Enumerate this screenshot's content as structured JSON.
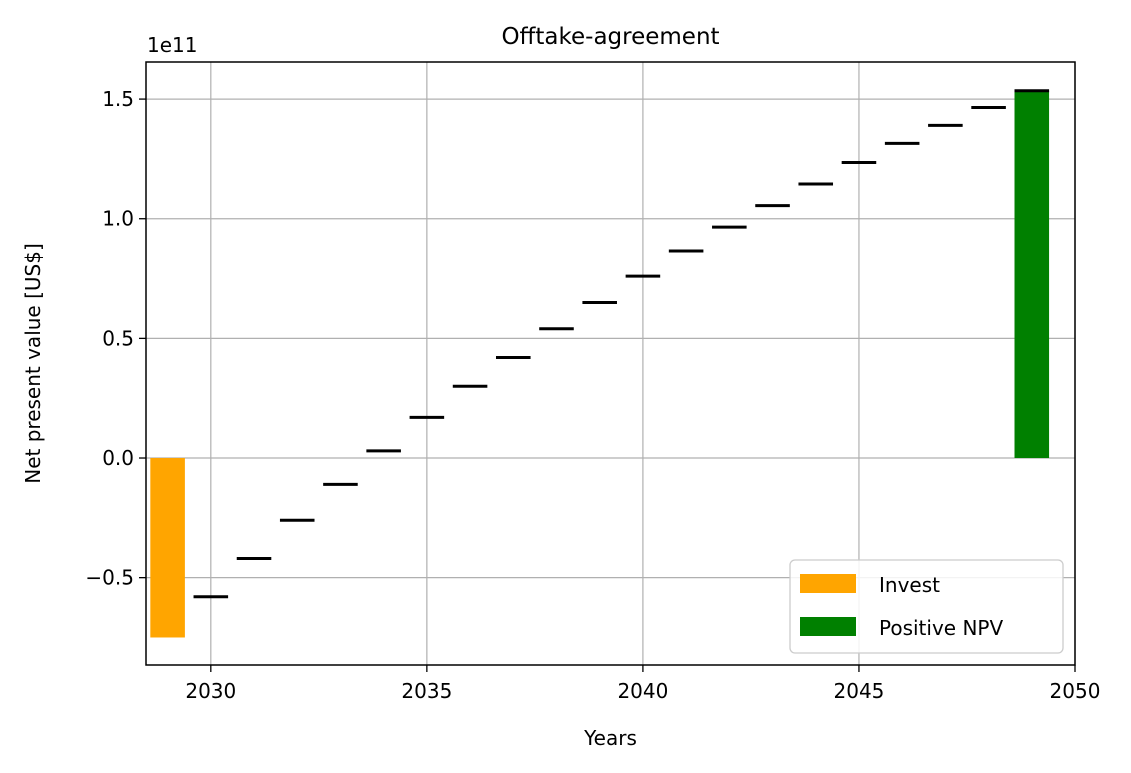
{
  "chart_data": {
    "type": "bar",
    "title": "Offtake-agreement",
    "xlabel": "Years",
    "ylabel": "Net present value [US$]",
    "y_offset_label": "1e11",
    "xlim": [
      2028.5,
      2050
    ],
    "ylim": [
      -0.865,
      1.655
    ],
    "x_ticks": [
      2030,
      2035,
      2040,
      2045,
      2050
    ],
    "x_tick_labels": [
      "2030",
      "2035",
      "2040",
      "2045",
      "2050"
    ],
    "y_ticks": [
      -0.5,
      0.0,
      0.5,
      1.0,
      1.5
    ],
    "y_tick_labels": [
      "−0.5",
      "0.0",
      "0.5",
      "1.0",
      "1.5"
    ],
    "y_scale_note": "values in units of 1e11 US$",
    "grid": true,
    "legend_position": "lower-right",
    "bars": [
      {
        "name": "Invest",
        "x": 2029,
        "value": -0.75,
        "color": "#ffa500"
      },
      {
        "name": "Positive NPV",
        "x": 2049,
        "value": 1.535,
        "color": "#008000"
      }
    ],
    "cumulative_npv": {
      "color": "#000000",
      "x": [
        2030,
        2031,
        2032,
        2033,
        2034,
        2035,
        2036,
        2037,
        2038,
        2039,
        2040,
        2041,
        2042,
        2043,
        2044,
        2045,
        2046,
        2047,
        2048,
        2049
      ],
      "values": [
        -0.58,
        -0.42,
        -0.26,
        -0.11,
        0.03,
        0.17,
        0.3,
        0.42,
        0.54,
        0.65,
        0.76,
        0.865,
        0.965,
        1.055,
        1.145,
        1.235,
        1.315,
        1.39,
        1.465,
        1.535
      ]
    },
    "legend": [
      {
        "label": "Invest",
        "color": "#ffa500"
      },
      {
        "label": "Positive NPV",
        "color": "#008000"
      }
    ]
  }
}
